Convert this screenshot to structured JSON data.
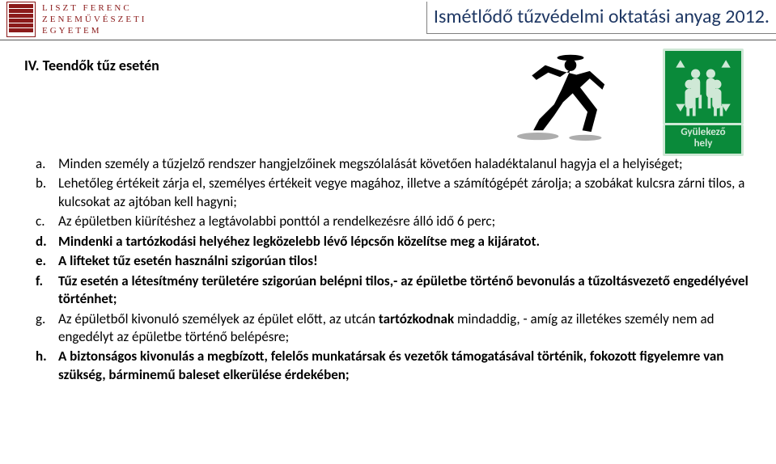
{
  "header": {
    "logo": {
      "line1": "LISZT FERENC",
      "line2": "ZENEMŰVÉSZETI",
      "line3": "EGYETEM"
    },
    "title": "Ismétlődő tűzvédelmi oktatási anyag 2012."
  },
  "section_title": "IV. Teendők tűz esetén",
  "sign": {
    "label_line1": "Gyülekező",
    "label_line2": "hely"
  },
  "items": [
    {
      "marker": "a.",
      "bold": false,
      "text": "Minden személy a tűzjelző rendszer hangjelzőinek megszólalását követően haladéktalanul hagyja el a helyiséget;"
    },
    {
      "marker": "b.",
      "bold": false,
      "text": "Lehetőleg értékeit zárja el, személyes értékeit vegye magához, illetve a számítógépét zárolja; a szobákat kulcsra zárni tilos, a kulcsokat az ajtóban kell hagyni;"
    },
    {
      "marker": "c.",
      "bold": false,
      "text": "Az épületben kiürítéshez a legtávolabbi ponttól a rendelkezésre álló idő 6 perc;"
    },
    {
      "marker": "d.",
      "bold": true,
      "text": "Mindenki a tartózkodási helyéhez legközelebb  lévő lépcsőn közelítse meg a kijáratot."
    },
    {
      "marker": "e.",
      "bold": true,
      "text": "A lifteket tűz esetén használni szigorúan tilos!"
    },
    {
      "marker": "f.",
      "bold": true,
      "text": "Tűz esetén  a létesítmény területére szigorúan belépni tilos,- az épületbe történő bevonulás a tűzoltásvezető engedélyével történhet;"
    },
    {
      "marker": "g.",
      "bold": false,
      "text_parts": [
        {
          "t": "Az épületből kivonuló személyek az épület előtt, az utcán ",
          "b": false
        },
        {
          "t": "tartózkodnak",
          "b": true
        },
        {
          "t": "  mindaddig, - amíg az illetékes személy nem ad engedélyt az épületbe történő belépésre;",
          "b": false
        }
      ]
    },
    {
      "marker": "h.",
      "bold": true,
      "text": "A biztonságos kivonulás a megbízott, felelős munkatársak és vezetők támogatásával történik, fokozott figyelemre van szükség, bárminemű baleset elkerülése érdekében;"
    }
  ]
}
